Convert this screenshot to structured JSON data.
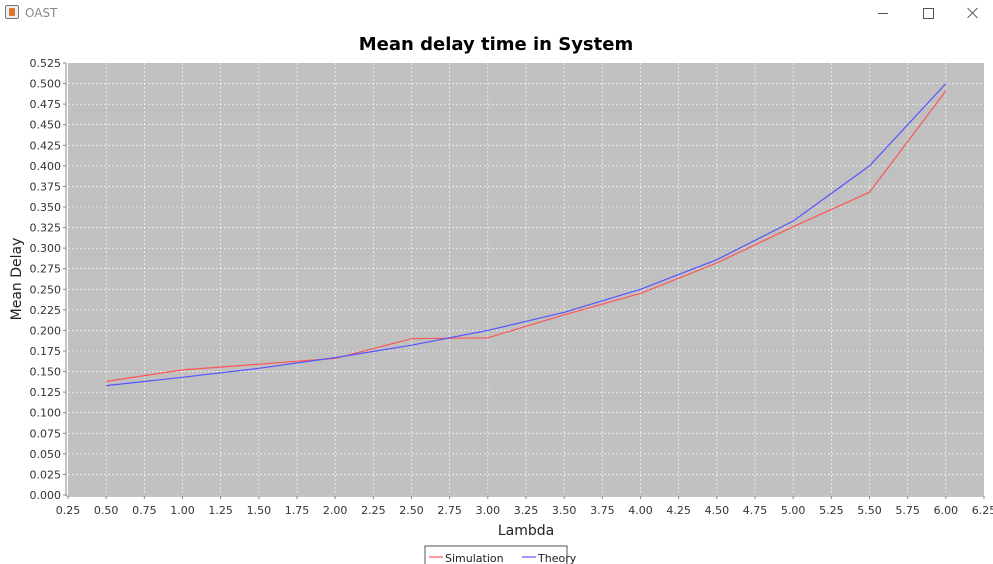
{
  "window": {
    "title": "OAST",
    "minimize_icon": "minimize-icon",
    "maximize_icon": "maximize-icon",
    "close_icon": "close-icon"
  },
  "chart_data": {
    "type": "line",
    "title": "Mean delay time in System",
    "xlabel": "Lambda",
    "ylabel": "Mean Delay",
    "xlim": [
      0.25,
      6.25
    ],
    "ylim": [
      0,
      0.525
    ],
    "x_ticks": [
      "0.25",
      "0.50",
      "0.75",
      "1.00",
      "1.25",
      "1.50",
      "1.75",
      "2.00",
      "2.25",
      "2.50",
      "2.75",
      "3.00",
      "3.25",
      "3.50",
      "3.75",
      "4.00",
      "4.25",
      "4.50",
      "4.75",
      "5.00",
      "5.25",
      "5.50",
      "5.75",
      "6.00",
      "6.25"
    ],
    "y_ticks": [
      "0.000",
      "0.025",
      "0.050",
      "0.075",
      "0.100",
      "0.125",
      "0.150",
      "0.175",
      "0.200",
      "0.225",
      "0.250",
      "0.275",
      "0.300",
      "0.325",
      "0.350",
      "0.375",
      "0.400",
      "0.425",
      "0.450",
      "0.475",
      "0.500",
      "0.525"
    ],
    "grid": true,
    "plot_background": "#c0c0c0",
    "grid_color": "#ffffff",
    "legend_position": "bottom-center",
    "x": [
      0.5,
      1.0,
      1.5,
      2.0,
      2.5,
      3.0,
      3.5,
      4.0,
      4.5,
      5.0,
      5.5,
      6.0
    ],
    "series": [
      {
        "name": "Simulation",
        "color": "#ff5555",
        "values": [
          0.138,
          0.152,
          0.159,
          0.166,
          0.19,
          0.191,
          0.219,
          0.245,
          0.282,
          0.326,
          0.368,
          0.491
        ]
      },
      {
        "name": "Theory",
        "color": "#5555ff",
        "values": [
          0.133,
          0.143,
          0.154,
          0.167,
          0.182,
          0.2,
          0.222,
          0.25,
          0.286,
          0.333,
          0.4,
          0.5
        ]
      }
    ]
  }
}
